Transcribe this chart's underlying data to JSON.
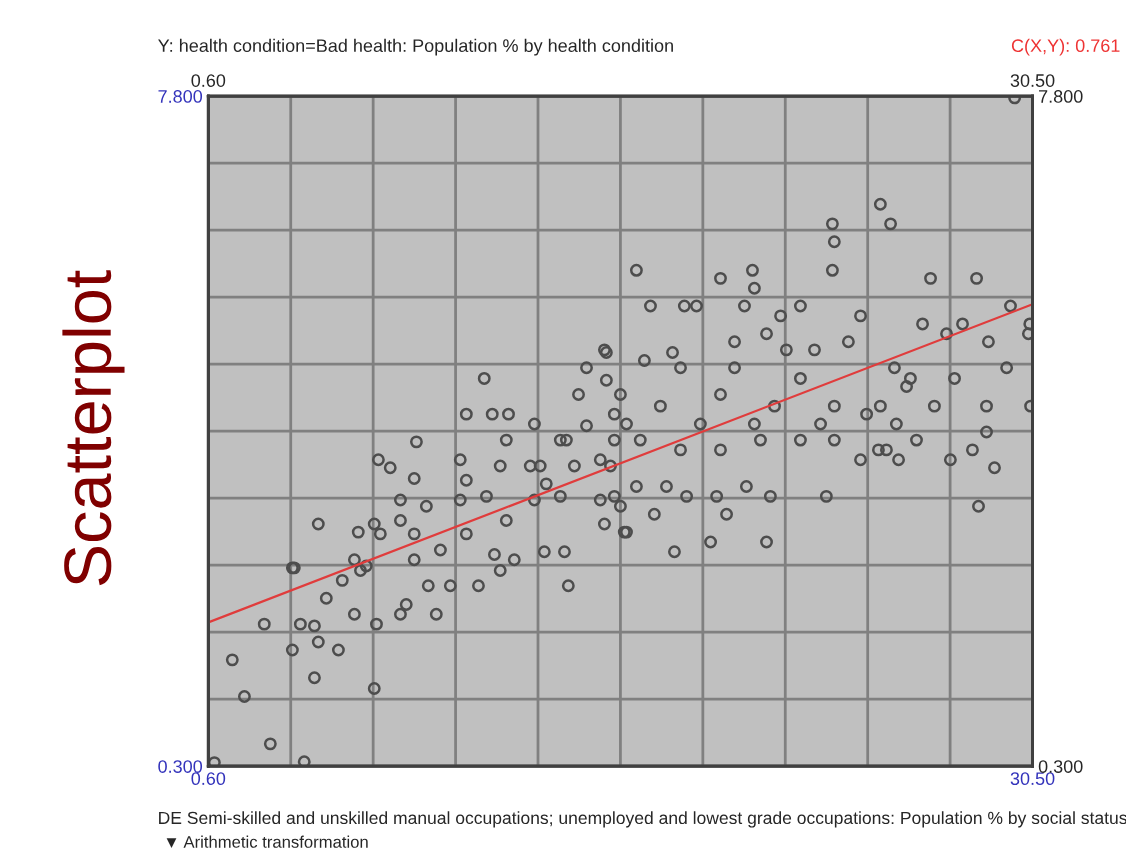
{
  "chart_data": {
    "type": "scatter",
    "title": "Scatterplot",
    "ylabel": "Y: health condition=Bad health: Population % by health condition",
    "xlabel": "DE Semi-skilled and unskilled manual occupations; unemployed and lowest grade occupations: Population % by social status",
    "annotations": [
      "C(X,Y): 0.761",
      "▼ Arithmetic transformation"
    ],
    "xlim": [
      0.6,
      30.5
    ],
    "ylim": [
      0.3,
      7.8
    ],
    "x2lim": [
      0.6,
      30.5
    ],
    "y2lim": [
      0.3,
      7.8
    ],
    "xticks": [
      {
        "value": 0.6,
        "label": "0.60"
      },
      {
        "value": 3.59,
        "label": null
      },
      {
        "value": 6.58,
        "label": null
      },
      {
        "value": 9.57,
        "label": null
      },
      {
        "value": 12.56,
        "label": null
      },
      {
        "value": 15.55,
        "label": null
      },
      {
        "value": 18.54,
        "label": null
      },
      {
        "value": 21.53,
        "label": null
      },
      {
        "value": 24.52,
        "label": null
      },
      {
        "value": 27.51,
        "label": null
      },
      {
        "value": 30.5,
        "label": "30.50"
      }
    ],
    "x2ticks": [
      {
        "value": 0.6,
        "label": "0.60"
      },
      {
        "value": 30.5,
        "label": "30.50"
      }
    ],
    "yticks": [
      {
        "value": 0.3,
        "label": "0.300"
      },
      {
        "value": 1.05,
        "label": null
      },
      {
        "value": 1.8,
        "label": null
      },
      {
        "value": 2.55,
        "label": null
      },
      {
        "value": 3.3,
        "label": null
      },
      {
        "value": 4.05,
        "label": null
      },
      {
        "value": 4.8,
        "label": null
      },
      {
        "value": 5.55,
        "label": null
      },
      {
        "value": 6.3,
        "label": null
      },
      {
        "value": 7.05,
        "label": null
      },
      {
        "value": 7.8,
        "label": "7.800"
      }
    ],
    "y2ticks": [
      {
        "value": 0.3,
        "label": "0.300"
      },
      {
        "value": 7.8,
        "label": "7.800"
      }
    ],
    "grid": true,
    "legend": false,
    "marker": "circle",
    "series": [
      {
        "color": "#4d4d4d",
        "x": [
          0.82,
          1.47,
          1.91,
          2.85,
          4.08,
          3.65,
          4.45,
          6.62,
          6.62,
          3.65,
          4.59,
          24.98,
          23.24,
          25.35,
          23.31,
          23.24,
          29.85,
          16.13,
          19.18,
          20.34,
          20.41,
          26.8,
          28.47,
          29.7,
          30.4,
          30.35,
          28.9,
          29.56,
          30.43,
          28.83,
          28.83,
          29.12,
          28.54,
          28.32,
          27.52,
          25.64,
          24.26,
          24.91,
          20.85,
          18.82,
          17.51,
          23.02,
          19.4,
          15.69,
          14.97,
          2.63,
          4.45,
          3.72,
          4.88,
          5.32,
          3.94,
          4.59,
          5.9,
          6.7,
          5.46,
          6.12,
          6.77,
          6.04,
          7.57,
          8.87,
          7.78,
          7.2,
          8.15,
          8.07,
          7.57,
          8.58,
          9.38,
          10.4,
          9.74,
          9.96,
          10.9,
          11.49,
          11.19,
          13.66,
          13.52,
          12.79,
          15.77,
          15.55,
          12.86,
          12.28,
          13.37,
          12.43,
          16.64,
          17.87,
          18.31,
          20.05,
          22.08,
          21.36,
          24.26,
          26.51,
          27.38,
          27.96,
          19.69,
          20.85,
          21.57,
          23.82,
          15.04,
          17.44,
          15.04,
          16.42,
          17.73,
          19.69,
          22.08,
          22.59,
          25.49,
          26.07,
          27.67,
          15.55,
          17.0,
          19.18,
          21.14,
          23.31,
          24.98,
          26.94,
          25.93,
          15.77,
          18.45,
          20.41,
          22.81,
          24.48,
          25.56,
          16.27,
          17.73,
          19.18,
          20.63,
          22.08,
          23.31,
          16.13,
          17.22,
          17.95,
          19.04,
          20.12,
          20.99,
          16.78,
          15.33,
          15.19,
          25.2,
          26.29,
          6.33,
          8.07,
          9.02,
          9.96,
          10.98,
          11.7,
          7.57,
          8.51,
          9.74,
          10.69,
          11.41,
          12.43,
          13.37,
          14.82,
          9.96,
          11.19,
          12.64,
          13.88,
          14.82,
          11.41,
          13.59,
          15.33,
          14.32,
          15.33,
          6.84,
          5.9,
          8.07,
          10.61,
          14.32,
          14.97,
          14.03
        ],
        "values": [
          0.34,
          1.49,
          1.08,
          0.55,
          0.35,
          1.6,
          1.87,
          1.17,
          3.01,
          2.52,
          3.01,
          6.59,
          6.37,
          6.37,
          6.17,
          5.85,
          7.78,
          5.85,
          5.76,
          5.85,
          5.65,
          5.76,
          5.76,
          5.45,
          5.25,
          5.14,
          5.05,
          4.76,
          4.33,
          4.33,
          4.04,
          3.64,
          3.21,
          3.84,
          3.73,
          3.73,
          3.73,
          3.84,
          2.81,
          2.81,
          2.7,
          3.32,
          3.12,
          2.92,
          3.01,
          1.89,
          1.29,
          2.52,
          2.18,
          1.6,
          1.89,
          1.69,
          2.0,
          1.89,
          2.38,
          2.49,
          3.73,
          2.92,
          2.0,
          2.0,
          2.11,
          3.64,
          3.93,
          3.52,
          3.05,
          2.32,
          2.32,
          2.32,
          3.73,
          4.24,
          4.24,
          4.24,
          2.49,
          2.32,
          2.7,
          2.7,
          2.92,
          3.21,
          3.46,
          3.66,
          3.95,
          4.13,
          5.45,
          5.45,
          5.45,
          5.45,
          5.45,
          5.34,
          5.34,
          5.25,
          5.14,
          5.25,
          5.05,
          5.14,
          4.96,
          5.05,
          4.93,
          4.93,
          4.62,
          4.84,
          4.76,
          4.76,
          4.64,
          4.96,
          4.76,
          4.64,
          4.64,
          4.46,
          4.33,
          4.46,
          4.33,
          4.33,
          4.33,
          4.33,
          4.55,
          4.13,
          4.13,
          4.13,
          4.13,
          4.24,
          4.13,
          3.95,
          3.84,
          3.84,
          3.95,
          3.95,
          3.95,
          3.43,
          3.43,
          3.32,
          3.32,
          3.43,
          3.32,
          3.12,
          3.32,
          3.66,
          3.84,
          3.95,
          2.54,
          2.9,
          2.72,
          2.9,
          2.67,
          2.61,
          3.28,
          3.21,
          3.28,
          3.32,
          3.05,
          3.28,
          3.32,
          3.28,
          3.5,
          3.66,
          3.66,
          3.66,
          3.73,
          3.95,
          3.95,
          3.95,
          4.11,
          4.24,
          2.9,
          2.61,
          2.61,
          4.64,
          4.76,
          4.96,
          4.46
        ]
      },
      {
        "type": "line",
        "color": "#e03c3c",
        "marker": "none",
        "x": [
          0.6,
          30.5
        ],
        "values": [
          1.91,
          5.47
        ]
      }
    ]
  }
}
